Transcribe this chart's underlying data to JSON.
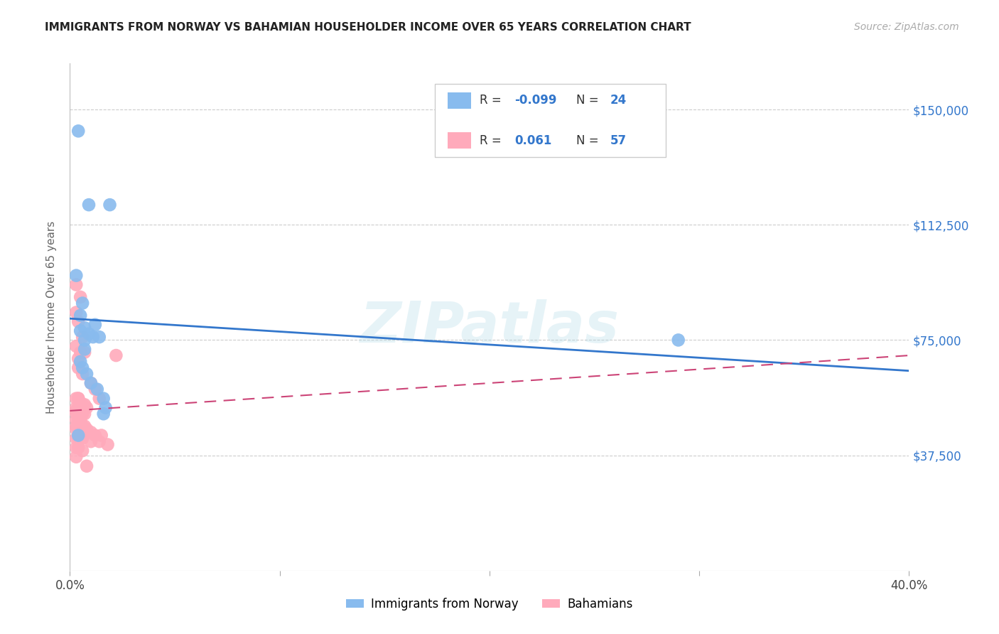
{
  "title": "IMMIGRANTS FROM NORWAY VS BAHAMIAN HOUSEHOLDER INCOME OVER 65 YEARS CORRELATION CHART",
  "source": "Source: ZipAtlas.com",
  "ylabel": "Householder Income Over 65 years",
  "yticks": [
    0,
    37500,
    75000,
    112500,
    150000
  ],
  "ytick_labels": [
    "",
    "$37,500",
    "$75,000",
    "$112,500",
    "$150,000"
  ],
  "xmin": 0.0,
  "xmax": 0.4,
  "ymin": 0,
  "ymax": 165000,
  "legend_label1": "Immigrants from Norway",
  "legend_label2": "Bahamians",
  "R1": -0.099,
  "N1": 24,
  "R2": 0.061,
  "N2": 57,
  "color_blue": "#88bbee",
  "color_pink": "#ffaabb",
  "color_blue_line": "#3377cc",
  "color_pink_line": "#cc4477",
  "background_color": "#ffffff",
  "watermark": "ZIPatlas",
  "norway_x": [
    0.004,
    0.009,
    0.019,
    0.003,
    0.006,
    0.005,
    0.012,
    0.005,
    0.007,
    0.009,
    0.011,
    0.014,
    0.007,
    0.007,
    0.005,
    0.006,
    0.008,
    0.01,
    0.013,
    0.016,
    0.017,
    0.29,
    0.004,
    0.016
  ],
  "norway_y": [
    143000,
    119000,
    119000,
    96000,
    87000,
    83000,
    80000,
    78000,
    79000,
    77000,
    76000,
    76000,
    75000,
    72000,
    68000,
    66000,
    64000,
    61000,
    59000,
    56000,
    53000,
    75000,
    44000,
    51000
  ],
  "bahamas_x": [
    0.003,
    0.005,
    0.003,
    0.004,
    0.003,
    0.005,
    0.007,
    0.004,
    0.004,
    0.006,
    0.01,
    0.012,
    0.014,
    0.006,
    0.003,
    0.004,
    0.006,
    0.007,
    0.008,
    0.003,
    0.004,
    0.005,
    0.003,
    0.004,
    0.003,
    0.004,
    0.005,
    0.006,
    0.007,
    0.003,
    0.004,
    0.005,
    0.003,
    0.004,
    0.006,
    0.007,
    0.008,
    0.003,
    0.004,
    0.006,
    0.008,
    0.01,
    0.012,
    0.015,
    0.003,
    0.004,
    0.005,
    0.006,
    0.01,
    0.014,
    0.018,
    0.003,
    0.004,
    0.006,
    0.003,
    0.008,
    0.022
  ],
  "bahamas_y": [
    93000,
    89000,
    84000,
    81000,
    73000,
    71000,
    71000,
    69000,
    66000,
    64000,
    61000,
    59000,
    56000,
    76000,
    56000,
    56000,
    54000,
    54000,
    53000,
    53000,
    53000,
    53000,
    52000,
    56000,
    51000,
    51000,
    51000,
    51000,
    51000,
    49000,
    49000,
    49000,
    47000,
    47000,
    47000,
    47000,
    46000,
    46000,
    46000,
    45000,
    45000,
    45000,
    44000,
    44000,
    43000,
    43000,
    43000,
    43000,
    42000,
    42000,
    41000,
    40000,
    40000,
    39000,
    37000,
    34000,
    70000
  ],
  "norway_line_x": [
    0.0,
    0.4
  ],
  "norway_line_y": [
    82000,
    65000
  ],
  "bahamas_line_x": [
    0.0,
    0.4
  ],
  "bahamas_line_y": [
    52000,
    70000
  ]
}
